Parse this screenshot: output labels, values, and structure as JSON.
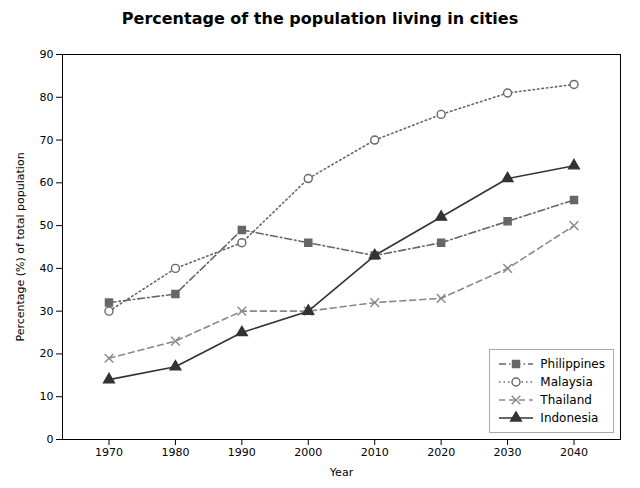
{
  "chart_data": {
    "type": "line",
    "title": "Percentage of the population living in cities",
    "x_label": "Year",
    "y_label": "Percentage (%) of total population",
    "x": [
      1970,
      1980,
      1990,
      2000,
      2010,
      2020,
      2030,
      2040
    ],
    "xlim": [
      1963,
      2047
    ],
    "xticks": [
      1970,
      1980,
      1990,
      2000,
      2010,
      2020,
      2030,
      2040
    ],
    "ylim": [
      0,
      90
    ],
    "yticks": [
      0,
      10,
      20,
      30,
      40,
      50,
      60,
      70,
      80,
      90
    ],
    "grid": false,
    "legend": "lower right",
    "series": [
      {
        "name": "Philippines",
        "color": "#666666",
        "line_style": "dashdot",
        "marker": "square",
        "values": [
          32,
          34,
          49,
          46,
          43,
          46,
          51,
          56
        ]
      },
      {
        "name": "Malaysia",
        "color": "#666666",
        "line_style": "dotted",
        "marker": "hollow-circle",
        "values": [
          30,
          40,
          46,
          61,
          70,
          76,
          81,
          83
        ]
      },
      {
        "name": "Thailand",
        "color": "#888888",
        "line_style": "dashed",
        "marker": "x",
        "values": [
          19,
          23,
          30,
          30,
          32,
          33,
          40,
          50
        ]
      },
      {
        "name": "Indonesia",
        "color": "#333333",
        "line_style": "solid",
        "marker": "triangle",
        "values": [
          14,
          17,
          25,
          30,
          43,
          52,
          61,
          64
        ]
      }
    ]
  }
}
